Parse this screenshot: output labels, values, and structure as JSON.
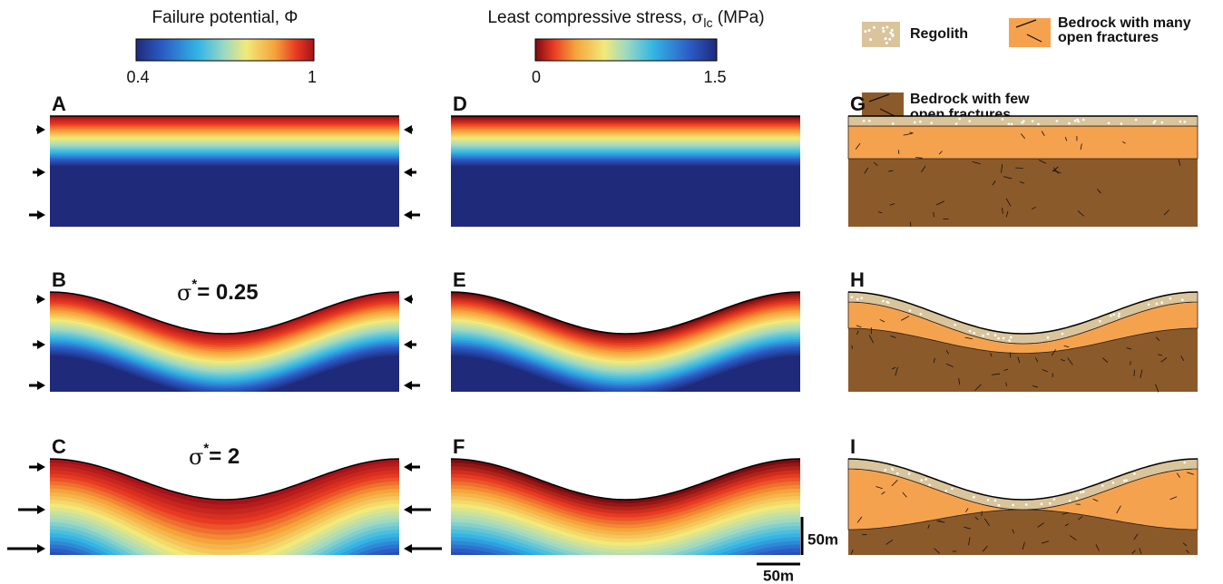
{
  "failure_colorbar": {
    "title": "Failure potential, Φ",
    "min_label": "0.4",
    "max_label": "1"
  },
  "stress_colorbar": {
    "title": "Least compressive stress, ",
    "symbol": "σ",
    "subscript": "lc",
    "unit": " (MPa)",
    "min_label": "0",
    "max_label": "1.5"
  },
  "legend": {
    "regolith": "Regolith",
    "many_fractures": [
      "Bedrock with many",
      "open fractures"
    ],
    "few_fractures": [
      "Bedrock with few",
      "open fractures"
    ]
  },
  "panels": [
    "A",
    "B",
    "C",
    "D",
    "E",
    "F",
    "G",
    "H",
    "I"
  ],
  "annotations": [
    {
      "symbol": "σ",
      "superscript": "*",
      "value": "= 0.25"
    },
    {
      "symbol": "σ",
      "superscript": "*",
      "value": "= 2"
    }
  ],
  "scale_bars": {
    "vertical": "50m",
    "horizontal": "50m"
  }
}
